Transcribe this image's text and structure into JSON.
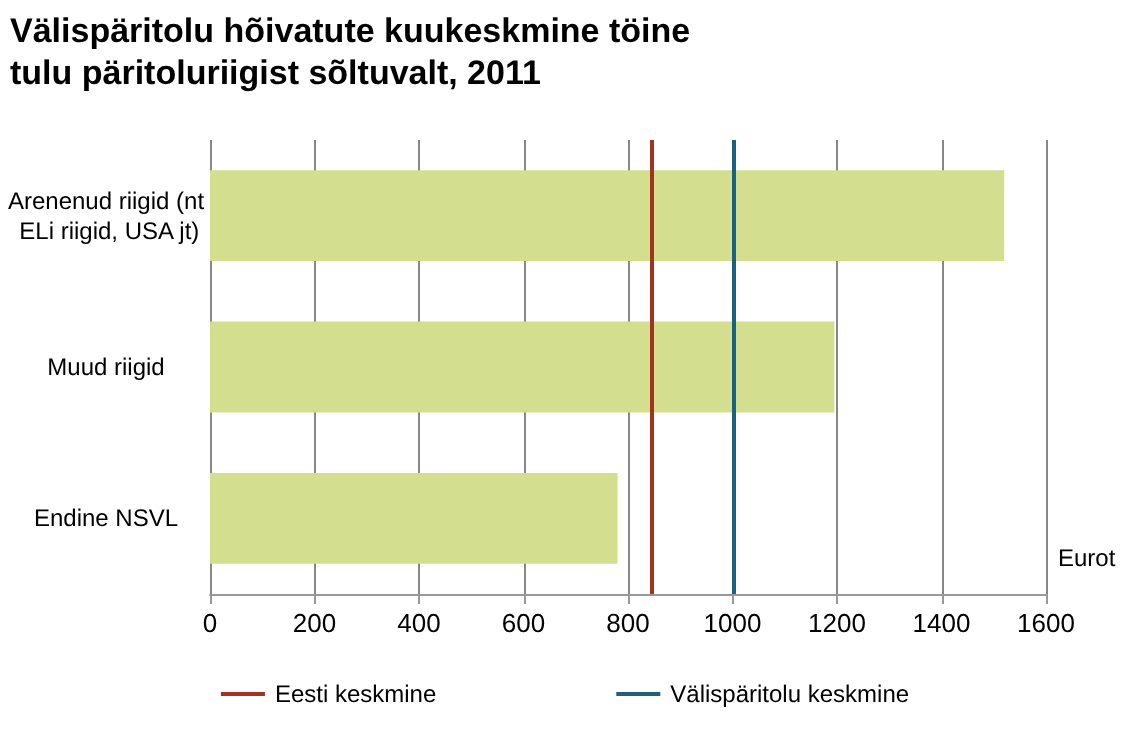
{
  "chart_data": {
    "type": "bar",
    "orientation": "horizontal",
    "title": "Välispäritolu hõivatute kuukeskmine töine tulu päritoluriigist sõltuvalt, 2011",
    "xlabel": "Eurot",
    "categories": [
      "Arenenud riigid (nt ELi riigid, USA jt)",
      "Muud riigid",
      "Endine NSVL"
    ],
    "values": [
      1520,
      1195,
      780
    ],
    "color": "#d3df8f",
    "xlim": [
      0,
      1600
    ],
    "xticks": [
      0,
      200,
      400,
      600,
      800,
      1000,
      1200,
      1400,
      1600
    ],
    "grid": "x",
    "legend": "bottom",
    "ref_lines": [
      {
        "axis": "x",
        "value": 845,
        "label": "Eesti keskmine",
        "color": "#a0341f"
      },
      {
        "axis": "x",
        "value": 1000,
        "label": "Välispäritolu keskmine",
        "color": "#1e6080"
      }
    ]
  }
}
